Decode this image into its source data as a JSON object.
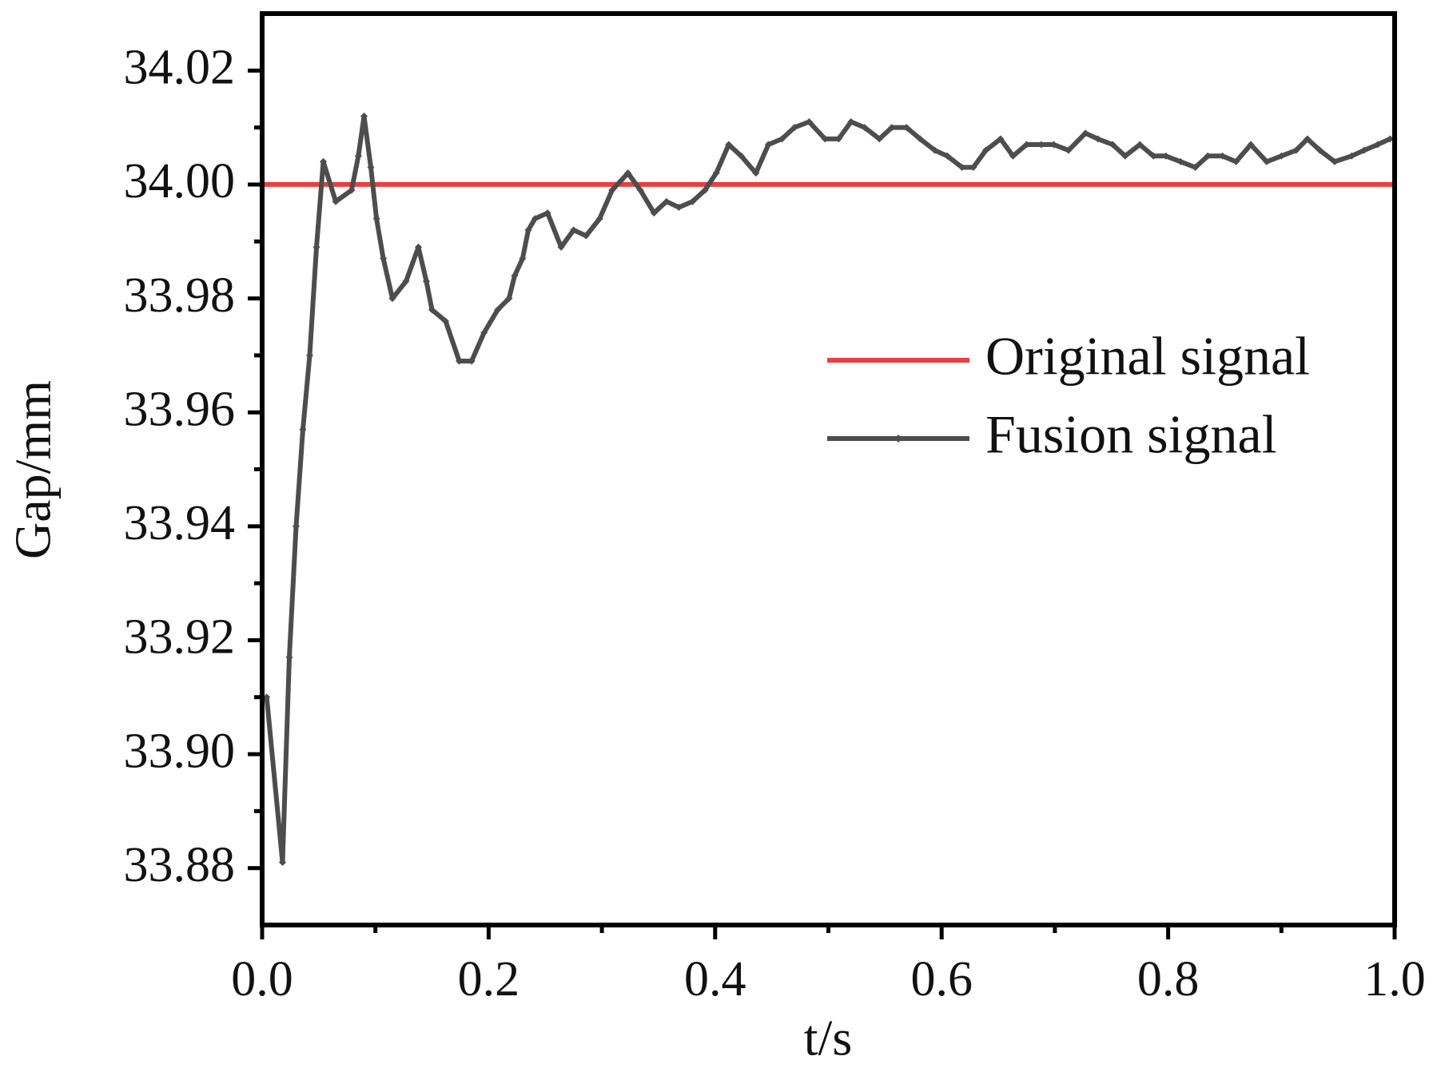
{
  "chart_data": {
    "type": "line",
    "x_label": "t/s",
    "y_label": "Gap/mm",
    "xlim": [
      0,
      1
    ],
    "ylim": [
      33.87,
      34.03
    ],
    "xticks": [
      {
        "value": 0,
        "label": "0.0"
      },
      {
        "value": 0.2,
        "label": "0.2"
      },
      {
        "value": 0.4,
        "label": "0.4"
      },
      {
        "value": 0.6,
        "label": "0.6"
      },
      {
        "value": 0.8,
        "label": "0.8"
      },
      {
        "value": 1,
        "label": "1.0"
      }
    ],
    "yticks": [
      {
        "value": 33.88,
        "label": "33.88"
      },
      {
        "value": 33.9,
        "label": "33.90"
      },
      {
        "value": 33.92,
        "label": "33.92"
      },
      {
        "value": 33.94,
        "label": "33.94"
      },
      {
        "value": 33.96,
        "label": "33.96"
      },
      {
        "value": 33.98,
        "label": "33.98"
      },
      {
        "value": 34,
        "label": "34.00"
      },
      {
        "value": 34.02,
        "label": "34.02"
      }
    ],
    "legend_position": "right",
    "series": [
      {
        "name": "Original signal",
        "color": "#e8403a",
        "marker": false,
        "x": [
          0,
          1
        ],
        "values": [
          34,
          34
        ]
      },
      {
        "name": "Fusion signal",
        "color": "#4d4d4d",
        "marker": true,
        "x": [
          0.004,
          0.018,
          0.024,
          0.03,
          0.036,
          0.042,
          0.048,
          0.054,
          0.065,
          0.079,
          0.085,
          0.09,
          0.096,
          0.101,
          0.107,
          0.115,
          0.127,
          0.138,
          0.145,
          0.15,
          0.162,
          0.174,
          0.185,
          0.196,
          0.208,
          0.218,
          0.223,
          0.23,
          0.235,
          0.241,
          0.252,
          0.264,
          0.275,
          0.286,
          0.298,
          0.309,
          0.323,
          0.334,
          0.346,
          0.357,
          0.368,
          0.38,
          0.391,
          0.401,
          0.412,
          0.423,
          0.436,
          0.447,
          0.459,
          0.47,
          0.483,
          0.497,
          0.509,
          0.52,
          0.532,
          0.545,
          0.556,
          0.569,
          0.581,
          0.594,
          0.605,
          0.618,
          0.628,
          0.639,
          0.652,
          0.663,
          0.675,
          0.688,
          0.699,
          0.712,
          0.727,
          0.738,
          0.751,
          0.762,
          0.775,
          0.787,
          0.798,
          0.811,
          0.824,
          0.835,
          0.848,
          0.86,
          0.873,
          0.887,
          0.9,
          0.913,
          0.923,
          0.934,
          0.947,
          0.962,
          0.973,
          0.985,
          0.996
        ],
        "values": [
          33.91,
          33.881,
          33.917,
          33.94,
          33.957,
          33.97,
          33.989,
          34.004,
          33.997,
          33.999,
          34.005,
          34.012,
          34.003,
          33.994,
          33.987,
          33.98,
          33.983,
          33.989,
          33.983,
          33.978,
          33.976,
          33.969,
          33.969,
          33.974,
          33.978,
          33.98,
          33.984,
          33.987,
          33.992,
          33.994,
          33.995,
          33.989,
          33.992,
          33.991,
          33.994,
          33.999,
          34.002,
          33.999,
          33.995,
          33.997,
          33.996,
          33.997,
          33.999,
          34.002,
          34.007,
          34.005,
          34.002,
          34.007,
          34.008,
          34.01,
          34.011,
          34.008,
          34.008,
          34.011,
          34.01,
          34.008,
          34.01,
          34.01,
          34.008,
          34.006,
          34.005,
          34.003,
          34.003,
          34.006,
          34.008,
          34.005,
          34.007,
          34.007,
          34.007,
          34.006,
          34.009,
          34.008,
          34.007,
          34.005,
          34.007,
          34.005,
          34.005,
          34.004,
          34.003,
          34.005,
          34.005,
          34.004,
          34.007,
          34.004,
          34.005,
          34.006,
          34.008,
          34.006,
          34.004,
          34.005,
          34.006,
          34.007,
          34.008
        ]
      }
    ]
  }
}
